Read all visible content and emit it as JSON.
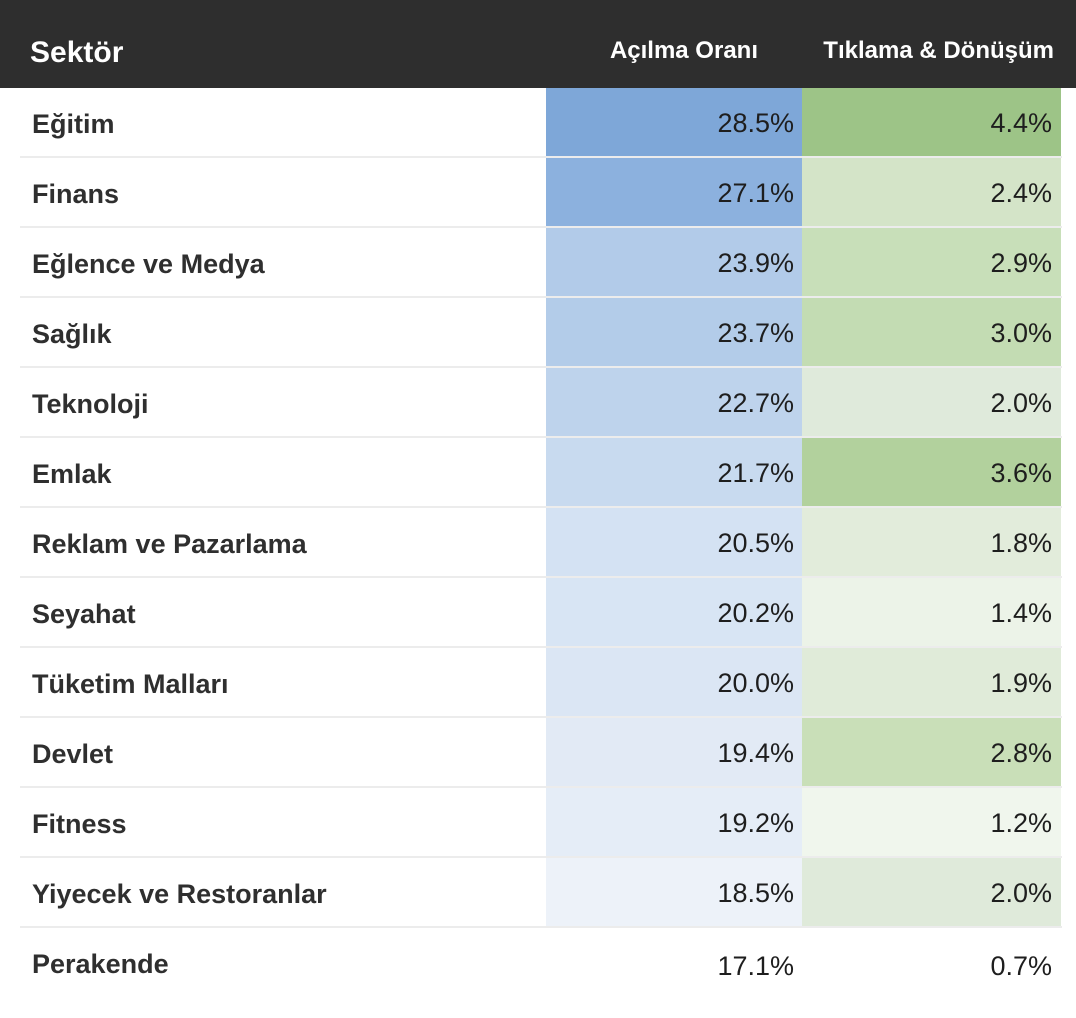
{
  "table": {
    "headers": {
      "sector": "Sektör",
      "open_rate": "Açılma Oranı",
      "click_conversion": "Tıklama & Dönüşüm"
    }
  },
  "chart_data": {
    "type": "table",
    "columns": [
      "Sektör",
      "Açılma Oranı",
      "Tıklama & Dönüşüm"
    ],
    "rows": [
      {
        "sector": "Eğitim",
        "open_rate": "28.5%",
        "click_conversion": "4.4%",
        "open_color": "#7ea7d8",
        "click_color": "#9dc487"
      },
      {
        "sector": "Finans",
        "open_rate": "27.1%",
        "click_conversion": "2.4%",
        "open_color": "#8cb1de",
        "click_color": "#d4e4c8"
      },
      {
        "sector": "Eğlence ve Medya",
        "open_rate": "23.9%",
        "click_conversion": "2.9%",
        "open_color": "#b2cbe9",
        "click_color": "#c8dfb9"
      },
      {
        "sector": "Sağlık",
        "open_rate": "23.7%",
        "click_conversion": "3.0%",
        "open_color": "#b3cce9",
        "click_color": "#c3dcb3"
      },
      {
        "sector": "Teknoloji",
        "open_rate": "22.7%",
        "click_conversion": "2.0%",
        "open_color": "#bed3ec",
        "click_color": "#dfeadb"
      },
      {
        "sector": "Emlak",
        "open_rate": "21.7%",
        "click_conversion": "3.6%",
        "open_color": "#c8daef",
        "click_color": "#b2d19d"
      },
      {
        "sector": "Reklam ve Pazarlama",
        "open_rate": "20.5%",
        "click_conversion": "1.8%",
        "open_color": "#d4e2f3",
        "click_color": "#e2ecdb"
      },
      {
        "sector": "Seyahat",
        "open_rate": "20.2%",
        "click_conversion": "1.4%",
        "open_color": "#d8e5f4",
        "click_color": "#ecf3e8"
      },
      {
        "sector": "Tüketim Malları",
        "open_rate": "20.0%",
        "click_conversion": "1.9%",
        "open_color": "#dbe6f4",
        "click_color": "#e0ebd9"
      },
      {
        "sector": "Devlet",
        "open_rate": "19.4%",
        "click_conversion": "2.8%",
        "open_color": "#e2eaf5",
        "click_color": "#c9dfb8"
      },
      {
        "sector": "Fitness",
        "open_rate": "19.2%",
        "click_conversion": "1.2%",
        "open_color": "#e5edf7",
        "click_color": "#f0f6ed"
      },
      {
        "sector": "Yiyecek ve Restoranlar",
        "open_rate": "18.5%",
        "click_conversion": "2.0%",
        "open_color": "#edf2f9",
        "click_color": "#dfeada"
      },
      {
        "sector": "Perakende",
        "open_rate": "17.1%",
        "click_conversion": "0.7%",
        "open_color": "#ffffff",
        "click_color": "#ffffff"
      }
    ]
  }
}
